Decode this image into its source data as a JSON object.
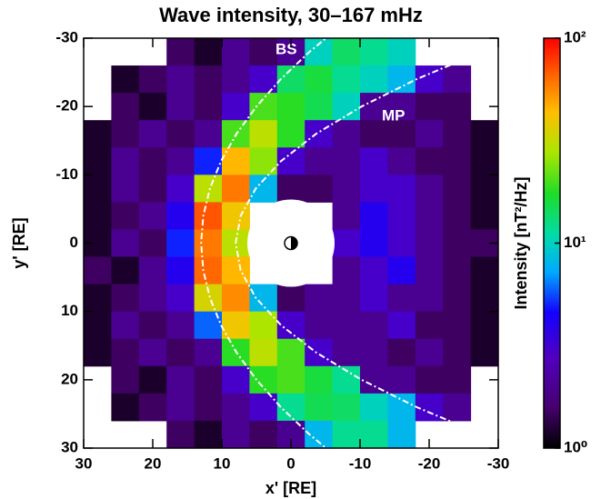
{
  "chart_data": {
    "type": "heatmap",
    "title": "Wave intensity, 30–167 mHz",
    "xlabel": "x' [RE]",
    "ylabel": "y' [RE]",
    "colorbar_label": "Intensity [nT²/Hz]",
    "annotations": [
      "BS",
      "MP"
    ],
    "x": [
      28,
      24,
      20,
      16,
      12,
      8,
      4,
      0,
      -4,
      -8,
      -12,
      -16,
      -20,
      -24,
      -28
    ],
    "y": [
      -28,
      -24,
      -20,
      -16,
      -12,
      -8,
      -4,
      0,
      4,
      8,
      12,
      16,
      20,
      24,
      28
    ],
    "z": [
      [
        null,
        null,
        null,
        1.5,
        1.2,
        2,
        1.5,
        2,
        10,
        14,
        12,
        10,
        null,
        null,
        null
      ],
      [
        null,
        1.2,
        1.5,
        2,
        1.5,
        2,
        3,
        14,
        16,
        12,
        10,
        8,
        3,
        2,
        null
      ],
      [
        null,
        1.5,
        1.2,
        2,
        1.5,
        3,
        20,
        18,
        15,
        10,
        2,
        2,
        1.5,
        1.5,
        null
      ],
      [
        1.2,
        1.5,
        2,
        1.5,
        2,
        20,
        30,
        18,
        3,
        2,
        1.5,
        1.5,
        2,
        1.5,
        1.2
      ],
      [
        1.2,
        2,
        1.5,
        2,
        5,
        45,
        25,
        3,
        2,
        2,
        3,
        2,
        1.5,
        1.5,
        1.2
      ],
      [
        1.2,
        2,
        1.5,
        3,
        30,
        60,
        8,
        1.5,
        1.5,
        2,
        3,
        3,
        2,
        1.5,
        1.2
      ],
      [
        1.2,
        1.5,
        2,
        4,
        70,
        40,
        null,
        null,
        null,
        2,
        4,
        3,
        2,
        1.5,
        1.2
      ],
      [
        1.2,
        2,
        1.5,
        5,
        60,
        30,
        null,
        null,
        null,
        3,
        4,
        3,
        2,
        1.5,
        1.5
      ],
      [
        1.5,
        1.2,
        2,
        4,
        65,
        45,
        null,
        null,
        null,
        2,
        3,
        4,
        2,
        1.5,
        1.2
      ],
      [
        1.2,
        1.5,
        2,
        3,
        35,
        55,
        8,
        1.5,
        2,
        2,
        3,
        2,
        2,
        1.5,
        1.2
      ],
      [
        1.2,
        2,
        1.5,
        2,
        6,
        40,
        28,
        3,
        2,
        2,
        2,
        3,
        1.5,
        1.5,
        1.2
      ],
      [
        1.2,
        1.5,
        2,
        1.5,
        2,
        18,
        30,
        20,
        3,
        2,
        2,
        1.5,
        2,
        1.5,
        1.2
      ],
      [
        null,
        1.5,
        1.2,
        2,
        1.5,
        3,
        18,
        20,
        16,
        12,
        2,
        2,
        1.5,
        1.5,
        null
      ],
      [
        null,
        1.2,
        1.5,
        2,
        1.5,
        2,
        3,
        12,
        15,
        14,
        10,
        8,
        3,
        2,
        null
      ],
      [
        null,
        null,
        null,
        1.5,
        1.2,
        2,
        1.5,
        2,
        8,
        12,
        12,
        8,
        null,
        null,
        null
      ]
    ],
    "xlim": [
      30,
      -30
    ],
    "ylim": [
      -30,
      30
    ],
    "xticks": [
      30,
      20,
      10,
      0,
      -10,
      -20,
      -30
    ],
    "yticks": [
      -30,
      -20,
      -10,
      0,
      10,
      20,
      30
    ],
    "clim": [
      1,
      100
    ],
    "clog": true,
    "cticks": [
      {
        "value": 1,
        "label": "10⁰"
      },
      {
        "value": 10,
        "label": "10¹"
      },
      {
        "value": 100,
        "label": "10²"
      }
    ]
  }
}
